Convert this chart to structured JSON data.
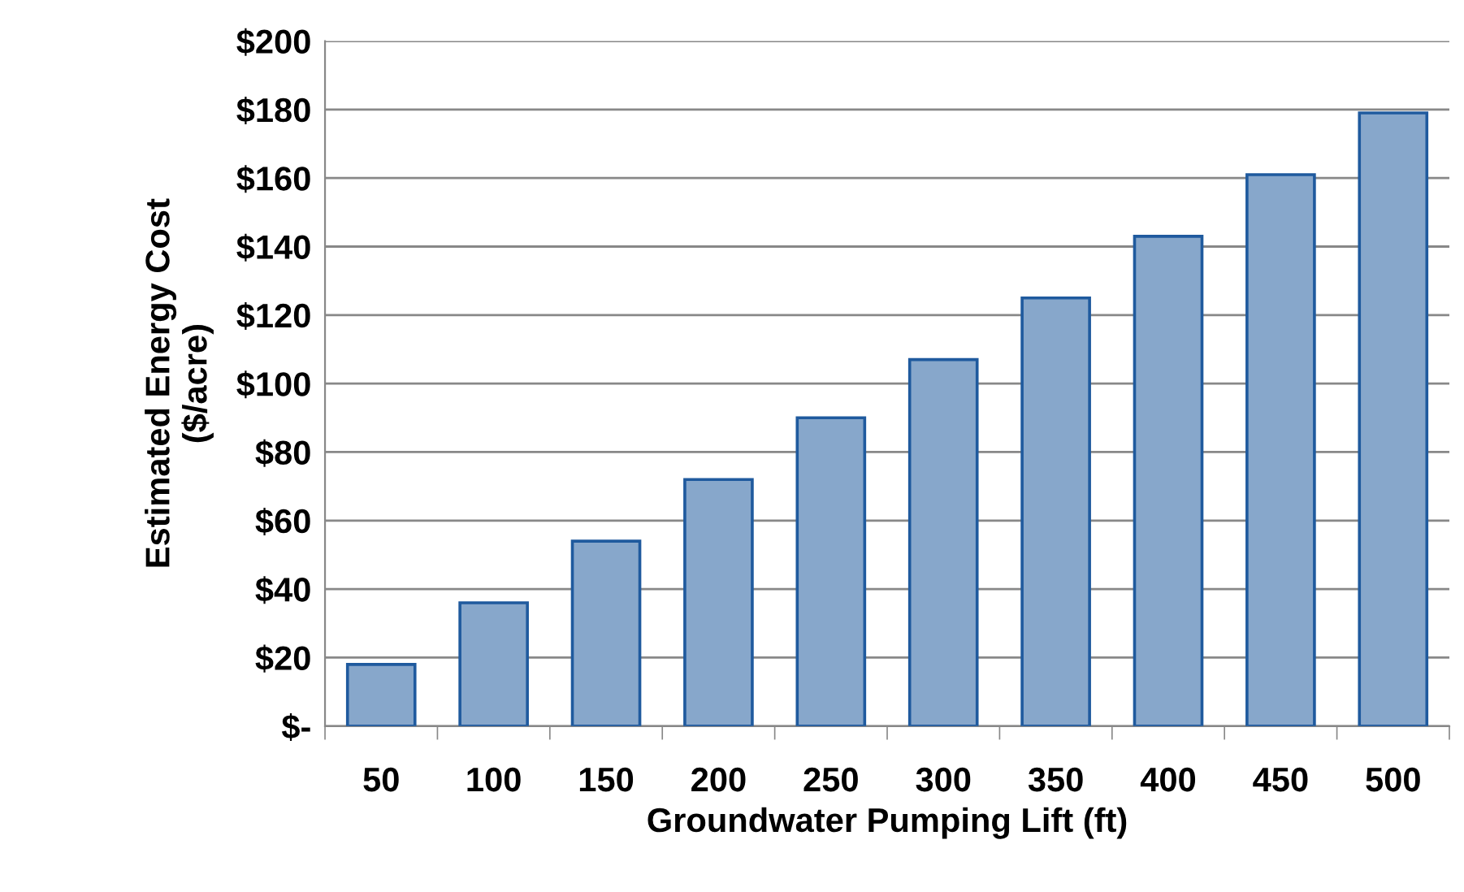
{
  "chart_data": {
    "type": "bar",
    "xlabel": "Groundwater Pumping Lift (ft)",
    "ylabel": "Estimated Energy Cost\n($/acre)",
    "categories": [
      "50",
      "100",
      "150",
      "200",
      "250",
      "300",
      "350",
      "400",
      "450",
      "500"
    ],
    "values": [
      18,
      36,
      54,
      72,
      90,
      107,
      125,
      143,
      161,
      179
    ],
    "color": "#87a7cb",
    "ylim": [
      0,
      200
    ],
    "yticks": [
      {
        "value": 0,
        "label": "$-"
      },
      {
        "value": 20,
        "label": "$20"
      },
      {
        "value": 40,
        "label": "$40"
      },
      {
        "value": 60,
        "label": "$60"
      },
      {
        "value": 80,
        "label": "$80"
      },
      {
        "value": 100,
        "label": "$100"
      },
      {
        "value": 120,
        "label": "$120"
      },
      {
        "value": 140,
        "label": "$140"
      },
      {
        "value": 160,
        "label": "$160"
      },
      {
        "value": 180,
        "label": "$180"
      },
      {
        "value": 200,
        "label": "$200"
      }
    ],
    "grid": "y",
    "legend": false
  }
}
